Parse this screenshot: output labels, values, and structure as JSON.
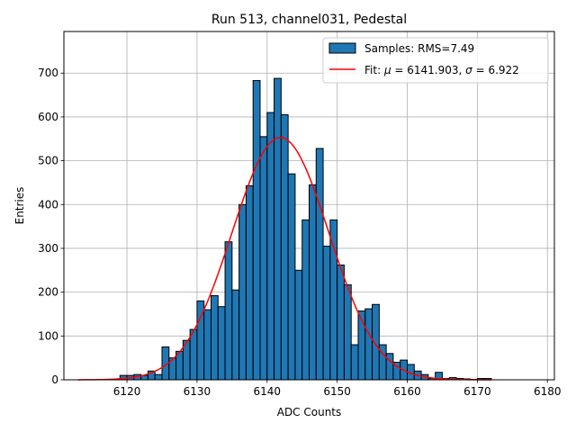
{
  "chart_data": {
    "type": "bar",
    "title": "Run 513, channel031, Pedestal",
    "xlabel": "ADC Counts",
    "ylabel": "Entries",
    "xlim": [
      6111,
      6181
    ],
    "ylim": [
      0,
      795
    ],
    "xticks": [
      6120,
      6130,
      6140,
      6150,
      6160,
      6170,
      6180
    ],
    "yticks": [
      0,
      100,
      200,
      300,
      400,
      500,
      600,
      700
    ],
    "grid": true,
    "legend_position": "top-right",
    "colors": {
      "bar": "#1f77b4",
      "bar_edge": "#000000",
      "fit": "#ff0000",
      "grid": "#b0b0b0"
    },
    "bin_width": 1,
    "bins": [
      {
        "x": 6119,
        "count": 10
      },
      {
        "x": 6120,
        "count": 10
      },
      {
        "x": 6121,
        "count": 12
      },
      {
        "x": 6122,
        "count": 10
      },
      {
        "x": 6123,
        "count": 20
      },
      {
        "x": 6124,
        "count": 12
      },
      {
        "x": 6125,
        "count": 75
      },
      {
        "x": 6126,
        "count": 50
      },
      {
        "x": 6127,
        "count": 65
      },
      {
        "x": 6128,
        "count": 90
      },
      {
        "x": 6129,
        "count": 115
      },
      {
        "x": 6130,
        "count": 180
      },
      {
        "x": 6131,
        "count": 160
      },
      {
        "x": 6132,
        "count": 192
      },
      {
        "x": 6133,
        "count": 167
      },
      {
        "x": 6134,
        "count": 315
      },
      {
        "x": 6135,
        "count": 205
      },
      {
        "x": 6136,
        "count": 400
      },
      {
        "x": 6137,
        "count": 443
      },
      {
        "x": 6138,
        "count": 683
      },
      {
        "x": 6139,
        "count": 555
      },
      {
        "x": 6140,
        "count": 610
      },
      {
        "x": 6141,
        "count": 688
      },
      {
        "x": 6142,
        "count": 605
      },
      {
        "x": 6143,
        "count": 470
      },
      {
        "x": 6144,
        "count": 250
      },
      {
        "x": 6145,
        "count": 365
      },
      {
        "x": 6146,
        "count": 445
      },
      {
        "x": 6147,
        "count": 528
      },
      {
        "x": 6148,
        "count": 305
      },
      {
        "x": 6149,
        "count": 365
      },
      {
        "x": 6150,
        "count": 262
      },
      {
        "x": 6151,
        "count": 217
      },
      {
        "x": 6152,
        "count": 80
      },
      {
        "x": 6153,
        "count": 157
      },
      {
        "x": 6154,
        "count": 162
      },
      {
        "x": 6155,
        "count": 172
      },
      {
        "x": 6156,
        "count": 80
      },
      {
        "x": 6157,
        "count": 60
      },
      {
        "x": 6158,
        "count": 40
      },
      {
        "x": 6159,
        "count": 45
      },
      {
        "x": 6160,
        "count": 35
      },
      {
        "x": 6161,
        "count": 20
      },
      {
        "x": 6162,
        "count": 12
      },
      {
        "x": 6163,
        "count": 3
      },
      {
        "x": 6164,
        "count": 17
      },
      {
        "x": 6165,
        "count": 3
      },
      {
        "x": 6166,
        "count": 5
      },
      {
        "x": 6167,
        "count": 3
      },
      {
        "x": 6168,
        "count": 2
      },
      {
        "x": 6169,
        "count": 1
      },
      {
        "x": 6170,
        "count": 3
      },
      {
        "x": 6171,
        "count": 3
      }
    ],
    "fit": {
      "type": "gaussian",
      "mu": 6141.903,
      "sigma": 6.922,
      "amplitude": 553,
      "x_range": [
        6113,
        6172
      ]
    },
    "legend": [
      {
        "label": "Samples: RMS=7.49",
        "kind": "bar"
      },
      {
        "label_prefix": "Fit: ",
        "mu_symbol": "μ",
        "mu_text": " = 6141.903, ",
        "sigma_symbol": "σ",
        "sigma_text": " = 6.922",
        "kind": "line"
      }
    ]
  }
}
